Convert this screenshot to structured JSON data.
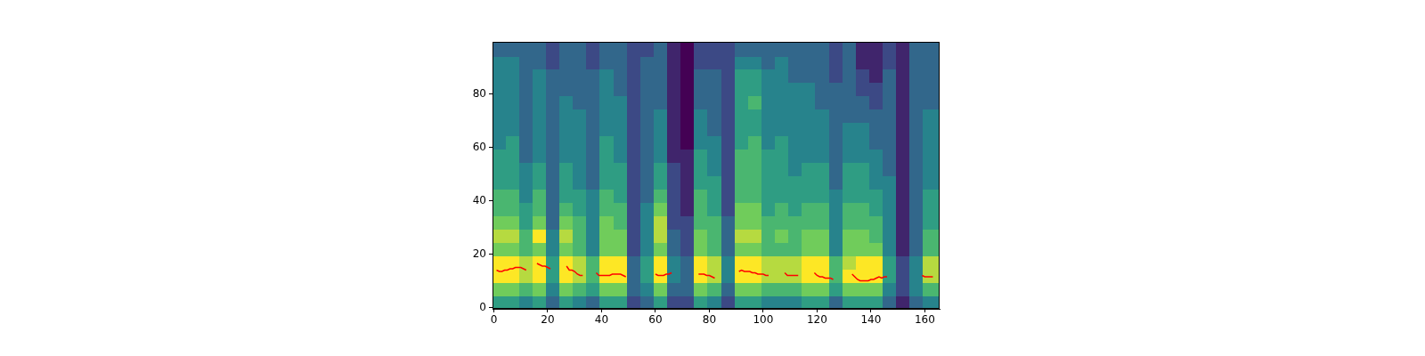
{
  "chart_data": {
    "type": "heatmap",
    "xlim": [
      -0.5,
      165.5
    ],
    "ylim": [
      -0.5,
      99.5
    ],
    "xticks": [
      0,
      20,
      40,
      60,
      80,
      100,
      120,
      140,
      160
    ],
    "yticks": [
      0,
      20,
      40,
      60,
      80
    ],
    "grid": false,
    "heatmap": {
      "x_edges": [
        -0.5,
        4.5,
        9.5,
        14.5,
        19.5,
        24.5,
        29.5,
        34.5,
        39.5,
        44.5,
        49.5,
        54.5,
        59.5,
        64.5,
        69.5,
        74.5,
        79.5,
        84.5,
        89.5,
        94.5,
        99.5,
        104.5,
        109.5,
        114.5,
        119.5,
        124.5,
        129.5,
        134.5,
        139.5,
        144.5,
        149.5,
        154.5,
        159.5,
        165.5
      ],
      "y_edges": [
        -0.5,
        4.5,
        9.5,
        14.5,
        19.5,
        24.5,
        29.5,
        34.5,
        39.5,
        44.5,
        49.5,
        54.5,
        59.5,
        64.5,
        69.5,
        74.5,
        79.5,
        84.5,
        89.5,
        94.5,
        99.5
      ],
      "zlim": [
        0,
        9
      ],
      "columns": [
        [
          5,
          7,
          9,
          9,
          7,
          8,
          7,
          6,
          6,
          5,
          5,
          5,
          4,
          4,
          4,
          4,
          4,
          4,
          4,
          3
        ],
        [
          5,
          7,
          9,
          9,
          7,
          8,
          7,
          6,
          6,
          5,
          5,
          5,
          5,
          4,
          4,
          4,
          4,
          4,
          4,
          3
        ],
        [
          4,
          6,
          8,
          8,
          6,
          6,
          5,
          5,
          4,
          4,
          4,
          3,
          3,
          3,
          3,
          3,
          3,
          3,
          3,
          3
        ],
        [
          5,
          7,
          9,
          9,
          7,
          9,
          7,
          6,
          6,
          5,
          5,
          4,
          4,
          4,
          4,
          4,
          4,
          4,
          3,
          3
        ],
        [
          3,
          4,
          5,
          5,
          4,
          4,
          3,
          3,
          3,
          3,
          3,
          3,
          3,
          3,
          3,
          3,
          3,
          3,
          2,
          2
        ],
        [
          5,
          7,
          9,
          9,
          7,
          8,
          7,
          6,
          5,
          5,
          5,
          4,
          4,
          4,
          4,
          4,
          3,
          3,
          3,
          3
        ],
        [
          4,
          6,
          8,
          8,
          6,
          6,
          6,
          5,
          5,
          4,
          4,
          4,
          4,
          4,
          4,
          3,
          3,
          3,
          3,
          3
        ],
        [
          3,
          5,
          6,
          6,
          4,
          4,
          4,
          4,
          4,
          3,
          3,
          3,
          3,
          3,
          3,
          3,
          3,
          3,
          2,
          2
        ],
        [
          5,
          7,
          9,
          9,
          7,
          7,
          7,
          6,
          6,
          5,
          5,
          5,
          5,
          4,
          4,
          4,
          4,
          4,
          3,
          3
        ],
        [
          5,
          7,
          9,
          9,
          7,
          7,
          6,
          6,
          5,
          5,
          5,
          4,
          4,
          4,
          4,
          4,
          3,
          3,
          3,
          3
        ],
        [
          2,
          3,
          3,
          3,
          2,
          2,
          2,
          2,
          2,
          2,
          2,
          2,
          2,
          2,
          2,
          2,
          2,
          2,
          2,
          2
        ],
        [
          3,
          4,
          5,
          5,
          4,
          4,
          4,
          4,
          3,
          3,
          3,
          3,
          3,
          3,
          3,
          3,
          3,
          3,
          3,
          2
        ],
        [
          5,
          7,
          9,
          9,
          7,
          8,
          8,
          7,
          6,
          5,
          5,
          4,
          4,
          4,
          4,
          3,
          3,
          3,
          3,
          3
        ],
        [
          2,
          3,
          4,
          4,
          3,
          3,
          2,
          2,
          2,
          2,
          2,
          1,
          1,
          1,
          1,
          1,
          1,
          1,
          1,
          1
        ],
        [
          2,
          3,
          3,
          3,
          2,
          2,
          2,
          1,
          1,
          1,
          1,
          1,
          0,
          0,
          0,
          0,
          0,
          0,
          0,
          0
        ],
        [
          5,
          7,
          9,
          9,
          7,
          7,
          6,
          6,
          6,
          5,
          5,
          5,
          4,
          4,
          4,
          3,
          3,
          3,
          2,
          2
        ],
        [
          4,
          6,
          8,
          8,
          6,
          6,
          6,
          5,
          5,
          5,
          4,
          4,
          4,
          3,
          3,
          3,
          3,
          3,
          2,
          2
        ],
        [
          2,
          3,
          4,
          4,
          3,
          3,
          3,
          2,
          2,
          2,
          2,
          2,
          2,
          2,
          2,
          2,
          2,
          2,
          2,
          2
        ],
        [
          5,
          7,
          9,
          9,
          7,
          8,
          7,
          7,
          6,
          6,
          6,
          6,
          5,
          5,
          5,
          5,
          5,
          5,
          4,
          3
        ],
        [
          5,
          7,
          9,
          9,
          7,
          8,
          7,
          7,
          6,
          6,
          6,
          6,
          6,
          5,
          5,
          6,
          5,
          5,
          4,
          3
        ],
        [
          4,
          6,
          8,
          8,
          6,
          6,
          6,
          5,
          5,
          5,
          5,
          5,
          4,
          4,
          4,
          4,
          4,
          4,
          3,
          3
        ],
        [
          4,
          6,
          8,
          8,
          6,
          7,
          6,
          6,
          5,
          5,
          5,
          5,
          5,
          4,
          4,
          4,
          4,
          4,
          4,
          3
        ],
        [
          4,
          6,
          8,
          8,
          6,
          6,
          6,
          5,
          5,
          5,
          4,
          4,
          4,
          4,
          4,
          4,
          4,
          3,
          3,
          3
        ],
        [
          5,
          7,
          9,
          9,
          7,
          7,
          6,
          6,
          5,
          5,
          5,
          4,
          4,
          4,
          4,
          4,
          4,
          3,
          3,
          3
        ],
        [
          5,
          7,
          9,
          9,
          7,
          7,
          6,
          6,
          5,
          5,
          5,
          4,
          4,
          4,
          4,
          3,
          3,
          3,
          3,
          3
        ],
        [
          3,
          5,
          6,
          6,
          4,
          4,
          4,
          4,
          4,
          3,
          3,
          3,
          3,
          3,
          3,
          3,
          3,
          2,
          2,
          2
        ],
        [
          5,
          7,
          9,
          8,
          7,
          7,
          6,
          6,
          5,
          5,
          5,
          4,
          4,
          4,
          3,
          3,
          3,
          3,
          3,
          3
        ],
        [
          5,
          7,
          9,
          9,
          7,
          7,
          6,
          6,
          5,
          5,
          5,
          4,
          4,
          4,
          3,
          3,
          2,
          2,
          1,
          1
        ],
        [
          5,
          7,
          9,
          9,
          7,
          6,
          6,
          5,
          5,
          4,
          4,
          4,
          3,
          3,
          3,
          2,
          2,
          1,
          1,
          1
        ],
        [
          3,
          4,
          5,
          5,
          4,
          4,
          4,
          4,
          4,
          4,
          3,
          3,
          3,
          3,
          3,
          3,
          3,
          3,
          2,
          2
        ],
        [
          1,
          2,
          2,
          2,
          1,
          1,
          1,
          1,
          1,
          1,
          1,
          1,
          1,
          1,
          1,
          1,
          1,
          1,
          1,
          1
        ],
        [
          3,
          4,
          4,
          4,
          3,
          3,
          3,
          3,
          3,
          3,
          3,
          3,
          3,
          3,
          3,
          3,
          3,
          3,
          3,
          3
        ],
        [
          4,
          6,
          8,
          8,
          6,
          6,
          5,
          5,
          5,
          4,
          4,
          4,
          4,
          4,
          4,
          3,
          3,
          3,
          3,
          3
        ]
      ]
    },
    "series": [
      {
        "type": "line",
        "color": "#ff0000",
        "x": [
          1,
          2,
          3,
          4,
          5,
          6,
          7,
          8,
          9,
          10,
          11,
          12,
          13,
          16,
          17,
          18,
          19,
          20,
          21,
          22,
          27,
          28,
          29,
          30,
          31,
          32,
          33,
          34,
          38,
          39,
          40,
          41,
          42,
          43,
          44,
          45,
          46,
          47,
          48,
          49,
          50,
          60,
          61,
          62,
          63,
          64,
          65,
          66,
          67,
          76,
          77,
          78,
          79,
          80,
          81,
          82,
          83,
          91,
          92,
          93,
          94,
          95,
          96,
          97,
          98,
          99,
          100,
          101,
          102,
          103,
          108,
          109,
          110,
          111,
          112,
          113,
          114,
          119,
          120,
          121,
          122,
          123,
          124,
          125,
          126,
          127,
          133,
          134,
          135,
          136,
          137,
          138,
          139,
          140,
          141,
          142,
          143,
          144,
          145,
          146,
          147,
          159,
          160,
          161,
          162,
          163
        ],
        "values": [
          14,
          13.5,
          13.5,
          14,
          14,
          14.5,
          14.5,
          15,
          15,
          15,
          14.5,
          14,
          null,
          16.5,
          16,
          15.5,
          15.5,
          15,
          14.5,
          null,
          15.5,
          14,
          14,
          13.5,
          12.5,
          12,
          12,
          null,
          13,
          12,
          12,
          12,
          12,
          12,
          12.5,
          12.5,
          12.5,
          12.5,
          12,
          11.5,
          null,
          12.5,
          12,
          12,
          12,
          12.5,
          12.5,
          13,
          null,
          12.5,
          12.5,
          12.5,
          12,
          12,
          11.5,
          11,
          null,
          13.5,
          14,
          13.5,
          13.5,
          13.5,
          13,
          13,
          12.5,
          12.5,
          12.5,
          12,
          12,
          null,
          13,
          12,
          12,
          12,
          12,
          12,
          null,
          13,
          12,
          11.5,
          11.5,
          11,
          11,
          11,
          10.5,
          null,
          12.5,
          11.5,
          10.5,
          10,
          10,
          10,
          10,
          10.5,
          10.5,
          11,
          11.5,
          11,
          11.5,
          11.5,
          null,
          12,
          11.5,
          11.5,
          11.5,
          11.5
        ]
      }
    ]
  }
}
